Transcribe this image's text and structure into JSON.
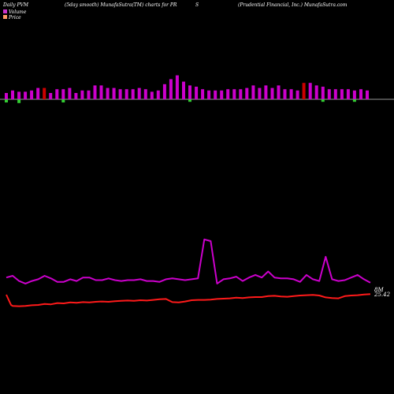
{
  "header": {
    "left": "Daily PVM",
    "mid": "(5day smooth) MunafaSutra(TM) charts for PR",
    "ticker_s": "S",
    "right": "(Prudential Financial, Inc.) MunafaSutra.com"
  },
  "legend": {
    "volume": "Volume",
    "price": "Price"
  },
  "colors": {
    "volume_up": "#cc00cc",
    "volume_down": "#cc0000",
    "volume_neg": "#33cc33",
    "pvm_line": "#cc00cc",
    "price_line": "#ff1a1a",
    "baseline": "#999999",
    "legend_volume": "#cc33cc",
    "legend_price": "#ff9966"
  },
  "chart_data": {
    "type": "bar+line",
    "volume_bars": {
      "values": [
        5,
        7,
        6,
        6,
        7,
        9,
        9,
        5,
        8,
        8,
        9,
        5,
        7,
        7,
        11,
        11,
        9,
        9,
        8,
        8,
        8,
        9,
        8,
        6,
        7,
        12,
        16,
        19,
        14,
        11,
        10,
        8,
        7,
        7,
        7,
        8,
        8,
        8,
        9,
        11,
        9,
        11,
        9,
        11,
        8,
        8,
        7,
        13,
        13,
        11,
        10,
        8,
        8,
        8,
        8,
        7,
        8,
        7
      ],
      "up": [
        1,
        1,
        1,
        1,
        1,
        1,
        0,
        1,
        1,
        1,
        1,
        1,
        1,
        1,
        1,
        1,
        1,
        1,
        1,
        1,
        1,
        1,
        1,
        1,
        1,
        1,
        1,
        1,
        1,
        1,
        1,
        1,
        1,
        1,
        1,
        1,
        1,
        1,
        1,
        1,
        1,
        1,
        1,
        1,
        1,
        1,
        1,
        0,
        1,
        1,
        1,
        1,
        1,
        1,
        1,
        1,
        1,
        1
      ],
      "neg": [
        5,
        0,
        6,
        0,
        0,
        0,
        0,
        0,
        0,
        5,
        0,
        0,
        0,
        0,
        0,
        0,
        0,
        0,
        0,
        0,
        0,
        0,
        0,
        0,
        0,
        0,
        0,
        0,
        0,
        4,
        0,
        0,
        0,
        0,
        0,
        0,
        0,
        0,
        0,
        0,
        0,
        0,
        0,
        0,
        0,
        0,
        0,
        0,
        0,
        0,
        4,
        0,
        0,
        0,
        0,
        4,
        0,
        0
      ]
    },
    "pvm_series": [
      18,
      20,
      14,
      11,
      14,
      16,
      20,
      17,
      13,
      13,
      16,
      14,
      18,
      18,
      15,
      15,
      17,
      15,
      14,
      15,
      15,
      16,
      14,
      14,
      13,
      16,
      17,
      16,
      15,
      16,
      17,
      22,
      16,
      11,
      16,
      17,
      19,
      14,
      18,
      21,
      18,
      25,
      18,
      17,
      17,
      16,
      13,
      21,
      16,
      14,
      25,
      16,
      14,
      15,
      18,
      21,
      16,
      12
    ],
    "pvm_peaks": [
      {
        "index": 31,
        "value": 62
      },
      {
        "index": 32,
        "value": 60
      },
      {
        "index": 50,
        "value": 42
      }
    ],
    "price_series": [
      21.8,
      21.7,
      21.6,
      21.7,
      21.9,
      22.0,
      22.3,
      22.2,
      22.6,
      22.5,
      22.8,
      22.7,
      22.9,
      22.8,
      23.0,
      23.1,
      23.0,
      23.2,
      23.3,
      23.4,
      23.3,
      23.5,
      23.4,
      23.6,
      23.8,
      23.9,
      22.9,
      22.8,
      23.1,
      23.5,
      23.6,
      23.6,
      23.7,
      23.9,
      24.0,
      24.1,
      24.3,
      24.2,
      24.4,
      24.5,
      24.5,
      24.8,
      24.9,
      24.7,
      24.6,
      24.8,
      25.0,
      25.1,
      25.2,
      25.0,
      24.4,
      24.2,
      24.1,
      24.8,
      25.0,
      25.1,
      25.3,
      25.42
    ],
    "last_price_label": "25.42",
    "last_pvm_label": "8M",
    "title": "",
    "xlabel": "",
    "ylabel": ""
  }
}
